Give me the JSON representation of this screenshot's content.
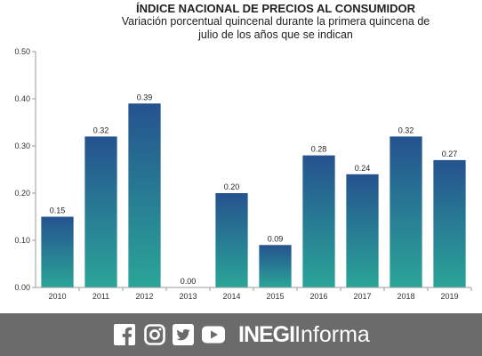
{
  "chart_data": {
    "type": "bar",
    "title": "ÍNDICE NACIONAL DE PRECIOS AL CONSUMIDOR",
    "subtitle_line1": "Variación porcentual quincenal durante la primera quincena de",
    "subtitle_line2": "julio de los años que se indican",
    "categories": [
      "2010",
      "2011",
      "2012",
      "2013",
      "2014",
      "2015",
      "2016",
      "2017",
      "2018",
      "2019"
    ],
    "values": [
      0.15,
      0.32,
      0.39,
      0.0,
      0.2,
      0.09,
      0.28,
      0.24,
      0.32,
      0.27
    ],
    "value_labels": [
      "0.15",
      "0.32",
      "0.39",
      "0.00",
      "0.20",
      "0.09",
      "0.28",
      "0.24",
      "0.32",
      "0.27"
    ],
    "ylim": [
      0,
      0.5
    ],
    "yticks": [
      "0.00",
      "0.10",
      "0.20",
      "0.30",
      "0.40",
      "0.50"
    ],
    "ytick_values": [
      0,
      0.1,
      0.2,
      0.3,
      0.4,
      0.5
    ],
    "grid": false,
    "colors": {
      "bar_top": "#25528f",
      "bar_bottom": "#2aa598"
    }
  },
  "footer": {
    "brand_strong": "INEGI",
    "brand_light": "Informa",
    "background": "#6b6b6b",
    "social_icons": [
      "facebook-icon",
      "instagram-icon",
      "twitter-icon",
      "youtube-icon"
    ]
  }
}
